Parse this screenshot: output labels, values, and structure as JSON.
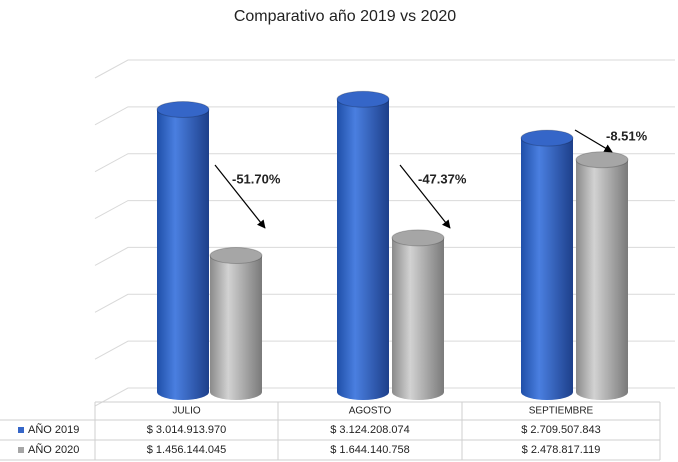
{
  "chart_data": {
    "type": "bar",
    "title": "Comparativo año 2019 vs 2020",
    "categories": [
      "JULIO",
      "AGOSTO",
      "SEPTIEMBRE"
    ],
    "series": [
      {
        "name": "AÑO 2019",
        "color": "#3566c8",
        "values": [
          3014913970,
          3124208074,
          2709507843
        ],
        "value_labels": [
          "$ 3.014.913.970",
          "$ 3.124.208.074",
          "$ 2.709.507.843"
        ]
      },
      {
        "name": "AÑO 2020",
        "color": "#a6a6a6",
        "values": [
          1456144045,
          1644140758,
          2478817119
        ],
        "value_labels": [
          "$ 1.456.144.045",
          "$ 1.644.140.758",
          "$ 2.478.817.119"
        ]
      }
    ],
    "annotations": [
      "-51.70%",
      "-47.37%",
      "-8.51%"
    ],
    "ylim": [
      0,
      3500000000
    ],
    "yticks": [
      0,
      500000000,
      1000000000,
      1500000000,
      2000000000,
      2500000000,
      3000000000,
      3500000000
    ],
    "grid": true
  }
}
